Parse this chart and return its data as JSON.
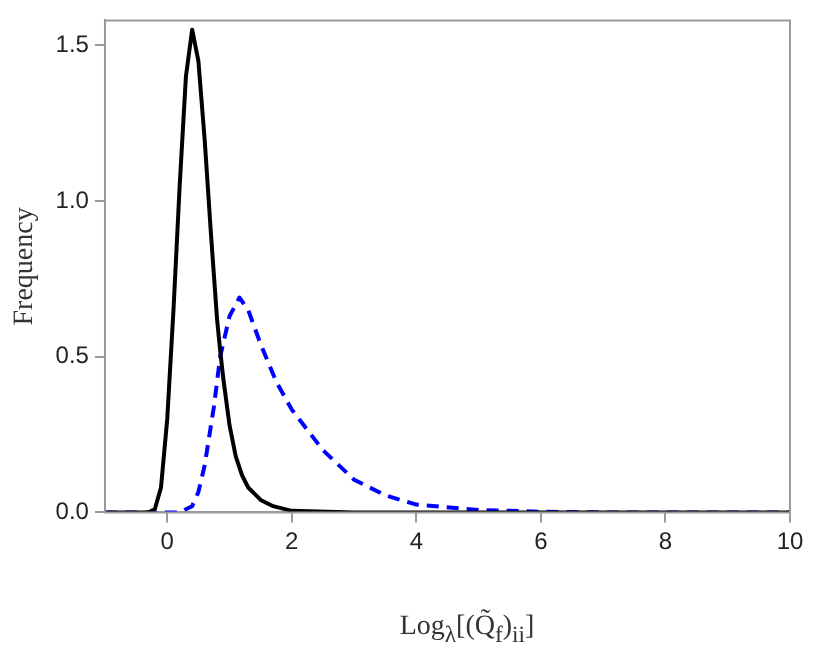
{
  "chart_data": {
    "type": "line",
    "xlabel": "Log$_{λ}$[(Q̃$_{f}$)$_{ii}$]",
    "ylabel": "Frequency",
    "xlim": [
      -1,
      10
    ],
    "ylim": [
      0,
      1.58
    ],
    "xticks": [
      0,
      2,
      4,
      6,
      8,
      10
    ],
    "yticks": [
      {
        "value": 0,
        "label": "0.0"
      },
      {
        "value": 0.5,
        "label": "0.5"
      },
      {
        "value": 1,
        "label": "1.0"
      },
      {
        "value": 1.5,
        "label": "1.5"
      }
    ],
    "grid": false,
    "legend": false,
    "marker": "none",
    "series": [
      {
        "color": "#000000",
        "line_style": "solid",
        "x": [
          -1,
          -0.3,
          -0.2,
          -0.1,
          0,
          0.1,
          0.2,
          0.3,
          0.4,
          0.5,
          0.6,
          0.7,
          0.8,
          0.85,
          0.9,
          1.0,
          1.1,
          1.2,
          1.3,
          1.5,
          1.7,
          2,
          3,
          10
        ],
        "values": [
          0,
          0,
          0.01,
          0.08,
          0.3,
          0.65,
          1.05,
          1.4,
          1.55,
          1.45,
          1.2,
          0.9,
          0.62,
          0.52,
          0.43,
          0.28,
          0.18,
          0.12,
          0.08,
          0.04,
          0.02,
          0.005,
          0,
          0
        ]
      },
      {
        "color": "#0000ff",
        "line_style": "dashed",
        "x": [
          -1,
          0.2,
          0.4,
          0.5,
          0.6,
          0.75,
          0.85,
          1.0,
          1.16,
          1.3,
          1.5,
          1.75,
          2,
          2.5,
          3,
          3.5,
          4,
          5,
          6,
          7,
          10
        ],
        "values": [
          0,
          0,
          0.02,
          0.065,
          0.15,
          0.34,
          0.5,
          0.63,
          0.69,
          0.65,
          0.54,
          0.42,
          0.33,
          0.2,
          0.105,
          0.055,
          0.025,
          0.008,
          0.002,
          0,
          0
        ]
      }
    ]
  }
}
